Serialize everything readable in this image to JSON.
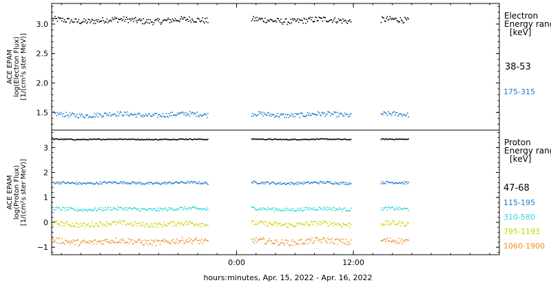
{
  "chart_data": [
    {
      "type": "scatter",
      "panel": "top",
      "ylabel_lines": [
        "ACE EPAM",
        "log(Electron Flux)",
        "[1/(cm²s ster MeV)]"
      ],
      "ylim": [
        1.2,
        3.35
      ],
      "yticks": [
        1.5,
        2.0,
        2.5,
        3.0
      ],
      "ytick_labels": [
        "1.5",
        "2.0",
        "2.5",
        "3.0"
      ],
      "legend_title_lines": [
        "Electron",
        "Energy range",
        "[keV]"
      ],
      "grid": false,
      "series": [
        {
          "name": "38-53",
          "color": "#000000",
          "base": 3.07,
          "spread": 0.05
        },
        {
          "name": "175-315",
          "color": "#1f77c8",
          "base": 1.47,
          "spread": 0.04
        }
      ]
    },
    {
      "type": "scatter",
      "panel": "bottom",
      "ylabel_lines": [
        "ACE EPAM",
        "log(Proton Flux)",
        "[1/(cm²s ster MeV)]"
      ],
      "ylim": [
        -1.3,
        3.7
      ],
      "yticks": [
        -1,
        0,
        1,
        2,
        3
      ],
      "ytick_labels": [
        "−1",
        "0",
        "1",
        "2",
        "3"
      ],
      "legend_title_lines": [
        "Proton",
        "Energy range",
        "[keV]"
      ],
      "grid": false,
      "series": [
        {
          "name": "47-68",
          "color": "#000000",
          "base": 3.35,
          "spread": 0.02
        },
        {
          "name": "115-195",
          "color": "#1f77c8",
          "base": 1.6,
          "spread": 0.05
        },
        {
          "name": "310-580",
          "color": "#2ed6d6",
          "base": 0.55,
          "spread": 0.07
        },
        {
          "name": "795-1193",
          "color": "#c8d400",
          "base": -0.05,
          "spread": 0.1
        },
        {
          "name": "1060-1900",
          "color": "#f08c1e",
          "base": -0.75,
          "spread": 0.12
        }
      ]
    }
  ],
  "x_axis": {
    "label": "hours:minutes, Apr. 15, 2022 - Apr. 16, 2022",
    "range_hours": [
      -19,
      27
    ],
    "ticks_hours": [
      0,
      12
    ],
    "tick_labels": [
      "0:00",
      "12:00"
    ],
    "data_segments_hours": [
      [
        -19,
        -3
      ],
      [
        1.5,
        11.7
      ],
      [
        14.8,
        17.6
      ]
    ]
  }
}
